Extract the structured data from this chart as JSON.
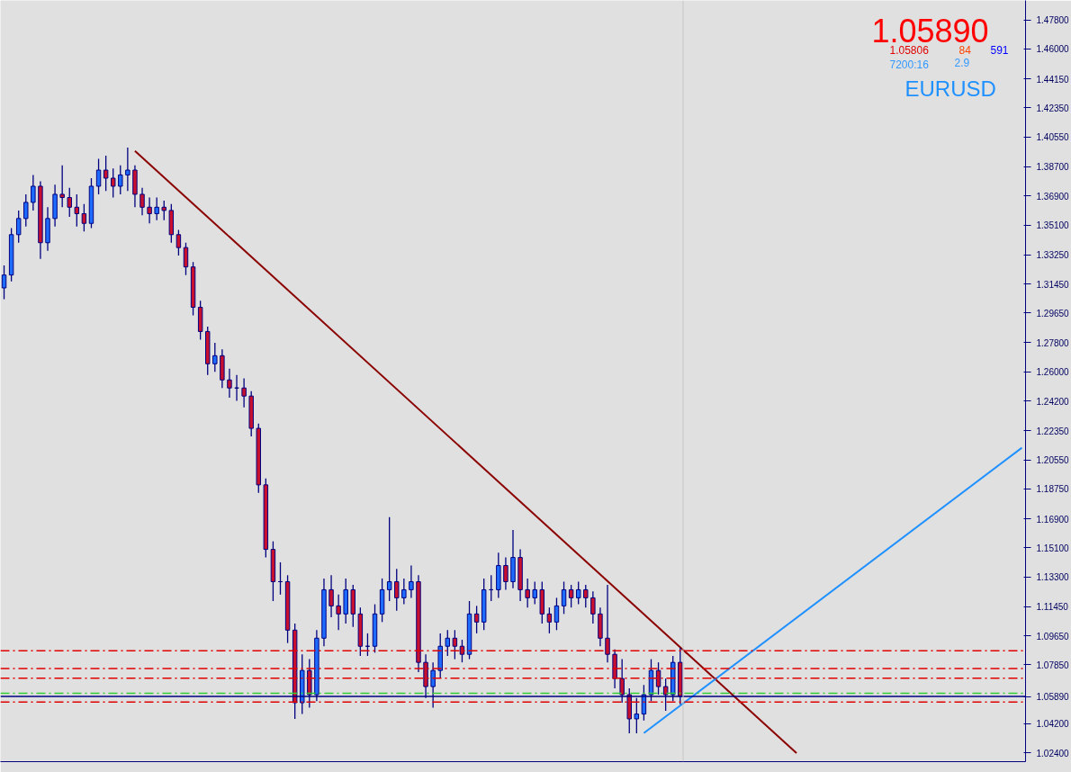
{
  "chart_data": {
    "type": "candlestick",
    "annotations": [
      "1.05890",
      "1.05806",
      "84",
      "591",
      "7200:16",
      "2.9",
      "EURUSD"
    ],
    "categories": [
      null,
      null,
      null,
      null,
      null,
      null,
      null,
      null,
      null,
      null,
      null,
      null,
      null,
      null,
      null,
      null,
      null,
      null,
      null,
      null,
      null,
      null,
      null,
      null,
      null,
      null,
      null,
      null,
      null,
      null,
      null,
      null,
      null,
      null,
      null,
      null,
      null,
      null,
      null,
      null,
      null,
      null,
      null,
      null,
      null,
      null,
      null,
      null,
      null,
      null,
      null,
      null,
      null,
      null,
      null,
      null,
      null,
      null,
      null,
      null,
      null,
      null,
      null,
      null,
      null,
      null,
      null,
      null,
      null,
      null,
      null,
      null,
      null,
      null,
      null,
      null,
      null,
      null,
      null,
      null,
      null,
      null,
      null,
      null,
      null,
      null,
      null,
      null,
      null,
      null,
      null,
      null,
      null,
      null,
      null,
      null,
      null,
      null,
      null,
      null,
      null,
      null,
      null,
      null,
      null,
      null,
      null,
      null,
      null,
      null,
      null,
      null,
      null,
      null,
      null,
      null,
      null,
      null,
      null,
      null,
      null,
      null,
      null,
      null,
      null,
      null,
      null,
      null,
      null,
      null,
      null,
      null,
      null,
      null,
      null,
      null,
      null,
      null,
      null,
      null,
      null
    ],
    "ohlc": [
      [
        1.312,
        1.326,
        1.305,
        1.32
      ],
      [
        1.32,
        1.349,
        1.316,
        1.345
      ],
      [
        1.345,
        1.36,
        1.34,
        1.355
      ],
      [
        1.355,
        1.37,
        1.35,
        1.365
      ],
      [
        1.365,
        1.382,
        1.36,
        1.375
      ],
      [
        1.375,
        1.378,
        1.33,
        1.34
      ],
      [
        1.34,
        1.362,
        1.335,
        1.355
      ],
      [
        1.355,
        1.376,
        1.35,
        1.37
      ],
      [
        1.37,
        1.388,
        1.362,
        1.368
      ],
      [
        1.368,
        1.374,
        1.356,
        1.362
      ],
      [
        1.362,
        1.37,
        1.35,
        1.358
      ],
      [
        1.358,
        1.364,
        1.347,
        1.352
      ],
      [
        1.352,
        1.38,
        1.349,
        1.375
      ],
      [
        1.375,
        1.392,
        1.37,
        1.385
      ],
      [
        1.385,
        1.394,
        1.372,
        1.38
      ],
      [
        1.38,
        1.386,
        1.368,
        1.375
      ],
      [
        1.375,
        1.388,
        1.37,
        1.382
      ],
      [
        1.382,
        1.399,
        1.372,
        1.385
      ],
      [
        1.385,
        1.388,
        1.362,
        1.37
      ],
      [
        1.37,
        1.374,
        1.357,
        1.362
      ],
      [
        1.362,
        1.368,
        1.352,
        1.358
      ],
      [
        1.358,
        1.368,
        1.354,
        1.362
      ],
      [
        1.362,
        1.366,
        1.354,
        1.36
      ],
      [
        1.36,
        1.364,
        1.34,
        1.345
      ],
      [
        1.345,
        1.348,
        1.332,
        1.337
      ],
      [
        1.337,
        1.34,
        1.32,
        1.325
      ],
      [
        1.325,
        1.328,
        1.295,
        1.3
      ],
      [
        1.3,
        1.304,
        1.28,
        1.285
      ],
      [
        1.285,
        1.288,
        1.258,
        1.265
      ],
      [
        1.265,
        1.278,
        1.26,
        1.27
      ],
      [
        1.27,
        1.274,
        1.25,
        1.255
      ],
      [
        1.255,
        1.262,
        1.244,
        1.25
      ],
      [
        1.25,
        1.258,
        1.242,
        1.25
      ],
      [
        1.25,
        1.256,
        1.238,
        1.245
      ],
      [
        1.245,
        1.248,
        1.22,
        1.225
      ],
      [
        1.225,
        1.228,
        1.185,
        1.19
      ],
      [
        1.19,
        1.194,
        1.145,
        1.15
      ],
      [
        1.15,
        1.155,
        1.118,
        1.13
      ],
      [
        1.13,
        1.142,
        1.122,
        1.13
      ],
      [
        1.13,
        1.134,
        1.092,
        1.1
      ],
      [
        1.1,
        1.104,
        1.045,
        1.055
      ],
      [
        1.055,
        1.085,
        1.048,
        1.075
      ],
      [
        1.075,
        1.082,
        1.052,
        1.06
      ],
      [
        1.06,
        1.1,
        1.056,
        1.095
      ],
      [
        1.095,
        1.132,
        1.09,
        1.125
      ],
      [
        1.125,
        1.134,
        1.108,
        1.115
      ],
      [
        1.115,
        1.122,
        1.1,
        1.11
      ],
      [
        1.11,
        1.132,
        1.104,
        1.125
      ],
      [
        1.125,
        1.128,
        1.102,
        1.11
      ],
      [
        1.11,
        1.114,
        1.084,
        1.09
      ],
      [
        1.09,
        1.098,
        1.084,
        1.09
      ],
      [
        1.09,
        1.116,
        1.086,
        1.11
      ],
      [
        1.11,
        1.132,
        1.105,
        1.125
      ],
      [
        1.125,
        1.17,
        1.118,
        1.13
      ],
      [
        1.13,
        1.138,
        1.112,
        1.12
      ],
      [
        1.12,
        1.132,
        1.116,
        1.125
      ],
      [
        1.125,
        1.14,
        1.12,
        1.13
      ],
      [
        1.13,
        1.134,
        1.074,
        1.08
      ],
      [
        1.08,
        1.085,
        1.058,
        1.065
      ],
      [
        1.065,
        1.08,
        1.052,
        1.075
      ],
      [
        1.075,
        1.098,
        1.07,
        1.09
      ],
      [
        1.09,
        1.1,
        1.084,
        1.095
      ],
      [
        1.095,
        1.1,
        1.082,
        1.09
      ],
      [
        1.09,
        1.094,
        1.08,
        1.085
      ],
      [
        1.085,
        1.118,
        1.082,
        1.11
      ],
      [
        1.11,
        1.115,
        1.098,
        1.105
      ],
      [
        1.105,
        1.132,
        1.1,
        1.125
      ],
      [
        1.125,
        1.134,
        1.118,
        1.125
      ],
      [
        1.125,
        1.148,
        1.12,
        1.14
      ],
      [
        1.14,
        1.145,
        1.125,
        1.13
      ],
      [
        1.13,
        1.162,
        1.126,
        1.145
      ],
      [
        1.145,
        1.15,
        1.118,
        1.125
      ],
      [
        1.125,
        1.132,
        1.114,
        1.12
      ],
      [
        1.12,
        1.13,
        1.116,
        1.125
      ],
      [
        1.125,
        1.13,
        1.104,
        1.11
      ],
      [
        1.11,
        1.114,
        1.098,
        1.105
      ],
      [
        1.105,
        1.12,
        1.1,
        1.115
      ],
      [
        1.115,
        1.13,
        1.11,
        1.125
      ],
      [
        1.125,
        1.128,
        1.114,
        1.12
      ],
      [
        1.12,
        1.13,
        1.116,
        1.125
      ],
      [
        1.125,
        1.128,
        1.114,
        1.12
      ],
      [
        1.12,
        1.124,
        1.104,
        1.11
      ],
      [
        1.11,
        1.114,
        1.09,
        1.095
      ],
      [
        1.095,
        1.128,
        1.08,
        1.085
      ],
      [
        1.085,
        1.088,
        1.064,
        1.07
      ],
      [
        1.07,
        1.082,
        1.055,
        1.06
      ],
      [
        1.06,
        1.064,
        1.036,
        1.045
      ],
      [
        1.045,
        1.058,
        1.036,
        1.048
      ],
      [
        1.048,
        1.066,
        1.044,
        1.06
      ],
      [
        1.06,
        1.082,
        1.056,
        1.075
      ],
      [
        1.075,
        1.08,
        1.06,
        1.065
      ],
      [
        1.065,
        1.07,
        1.05,
        1.06
      ],
      [
        1.06,
        1.084,
        1.056,
        1.08
      ],
      [
        1.08,
        1.089,
        1.054,
        1.059
      ],
      null,
      null,
      null,
      null,
      null,
      null,
      null,
      null,
      null,
      null,
      null,
      null,
      null,
      null,
      null,
      null,
      null,
      null,
      null,
      null,
      null,
      null,
      null,
      null,
      null,
      null,
      null,
      null,
      null,
      null,
      null,
      null,
      null,
      null,
      null,
      null,
      null,
      null,
      null,
      null,
      null,
      null,
      null,
      null,
      null,
      null,
      null
    ],
    "series": [
      {
        "type": "line",
        "color": "#8b0000",
        "values": [
          null,
          null,
          null,
          null,
          null,
          null,
          null,
          null,
          null,
          null,
          null,
          null,
          null,
          null,
          null,
          null,
          null,
          null,
          1.3969,
          null,
          null,
          null,
          null,
          null,
          null,
          null,
          null,
          null,
          null,
          null,
          null,
          null,
          null,
          null,
          null,
          null,
          null,
          null,
          null,
          null,
          null,
          null,
          null,
          null,
          null,
          null,
          null,
          null,
          null,
          null,
          null,
          null,
          null,
          null,
          null,
          null,
          null,
          null,
          null,
          null,
          null,
          null,
          null,
          null,
          null,
          null,
          null,
          null,
          null,
          null,
          null,
          null,
          null,
          null,
          null,
          null,
          null,
          null,
          null,
          null,
          null,
          null,
          null,
          null,
          null,
          null,
          null,
          null,
          null,
          null,
          null,
          null,
          null,
          null,
          null,
          null,
          null,
          null,
          null,
          null,
          null,
          null,
          null,
          null,
          null,
          null,
          null,
          null,
          null,
          1.0238,
          null,
          null,
          null,
          null,
          null,
          null,
          null,
          null,
          null,
          null,
          null,
          null,
          null,
          null,
          null,
          null,
          null,
          null,
          null,
          null,
          null,
          null,
          null,
          null,
          null,
          null,
          null,
          null,
          null,
          null,
          null
        ]
      },
      {
        "type": "line",
        "color": "#1e90ff",
        "values": [
          null,
          null,
          null,
          null,
          null,
          null,
          null,
          null,
          null,
          null,
          null,
          null,
          null,
          null,
          null,
          null,
          null,
          null,
          null,
          null,
          null,
          null,
          null,
          null,
          null,
          null,
          null,
          null,
          null,
          null,
          null,
          null,
          null,
          null,
          null,
          null,
          null,
          null,
          null,
          null,
          null,
          null,
          null,
          null,
          null,
          null,
          null,
          null,
          null,
          null,
          null,
          null,
          null,
          null,
          null,
          null,
          null,
          null,
          null,
          null,
          null,
          null,
          null,
          null,
          null,
          null,
          null,
          null,
          null,
          null,
          null,
          null,
          null,
          null,
          null,
          null,
          null,
          null,
          null,
          null,
          null,
          null,
          null,
          null,
          null,
          null,
          null,
          null,
          1.0362,
          null,
          null,
          null,
          null,
          null,
          null,
          null,
          null,
          null,
          null,
          null,
          null,
          null,
          null,
          null,
          null,
          null,
          null,
          null,
          null,
          null,
          null,
          null,
          null,
          null,
          null,
          null,
          null,
          null,
          null,
          null,
          null,
          null,
          null,
          null,
          null,
          null,
          null,
          null,
          null,
          null,
          null,
          null,
          null,
          null,
          null,
          null,
          null,
          null,
          null,
          null,
          1.213
        ]
      }
    ],
    "ylim": [
      1.0185,
      1.4901
    ],
    "yticks": [
      {
        "value": 1.478,
        "label": "1.47800"
      },
      {
        "value": 1.46,
        "label": "1.46000"
      },
      {
        "value": 1.4415,
        "label": "1.44150"
      },
      {
        "value": 1.4235,
        "label": "1.42350"
      },
      {
        "value": 1.4055,
        "label": "1.40550"
      },
      {
        "value": 1.387,
        "label": "1.38700"
      },
      {
        "value": 1.369,
        "label": "1.36900"
      },
      {
        "value": 1.351,
        "label": "1.35100"
      },
      {
        "value": 1.3325,
        "label": "1.33250"
      },
      {
        "value": 1.3145,
        "label": "1.31450"
      },
      {
        "value": 1.2965,
        "label": "1.29650"
      },
      {
        "value": 1.278,
        "label": "1.27800"
      },
      {
        "value": 1.26,
        "label": "1.26000"
      },
      {
        "value": 1.242,
        "label": "1.24200"
      },
      {
        "value": 1.2235,
        "label": "1.22350"
      },
      {
        "value": 1.2055,
        "label": "1.20550"
      },
      {
        "value": 1.1875,
        "label": "1.18750"
      },
      {
        "value": 1.169,
        "label": "1.16900"
      },
      {
        "value": 1.151,
        "label": "1.15100"
      },
      {
        "value": 1.133,
        "label": "1.13300"
      },
      {
        "value": 1.1145,
        "label": "1.11450"
      },
      {
        "value": 1.0965,
        "label": "1.09650"
      },
      {
        "value": 1.0785,
        "label": "1.07850"
      },
      {
        "value": 1.0589,
        "label": "1.05890"
      },
      {
        "value": 1.042,
        "label": "1.04200"
      },
      {
        "value": 1.024,
        "label": "1.02400"
      }
    ],
    "tick_labels": "y",
    "ref_lines": [
      {
        "axis": "y",
        "value": 1.0872,
        "color": "#e00000",
        "line_style": "dashed"
      },
      {
        "axis": "y",
        "value": 1.0762,
        "color": "#e00000",
        "line_style": "dashed"
      },
      {
        "axis": "y",
        "value": 1.0702,
        "color": "#e00000",
        "line_style": "dashed"
      },
      {
        "axis": "y",
        "value": 1.0609,
        "color": "#32cd32",
        "line_style": "dashed"
      },
      {
        "axis": "y",
        "value": 1.0589,
        "color": "#000080",
        "line_style": "solid"
      },
      {
        "axis": "y",
        "value": 1.0554,
        "color": "#e00000",
        "line_style": "dashed"
      }
    ]
  }
}
